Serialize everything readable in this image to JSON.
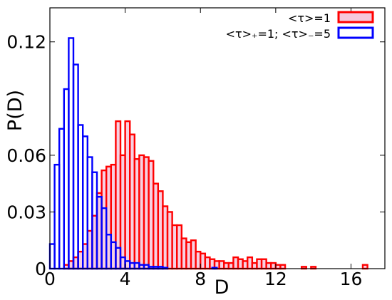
{
  "chart_data": {
    "type": "bar",
    "xlabel": "D",
    "ylabel": "P(D)",
    "xlim": [
      0,
      17.8
    ],
    "ylim": [
      0,
      0.138
    ],
    "xticks": [
      {
        "value": 0,
        "label": "0"
      },
      {
        "value": 4,
        "label": "4"
      },
      {
        "value": 8,
        "label": "8"
      },
      {
        "value": 12,
        "label": "12"
      },
      {
        "value": 16,
        "label": "16"
      }
    ],
    "yticks": [
      {
        "value": 0,
        "label": "0"
      },
      {
        "value": 0.03,
        "label": "0.03"
      },
      {
        "value": 0.06,
        "label": "0.06"
      },
      {
        "value": 0.12,
        "label": "0.12"
      }
    ],
    "grid": false,
    "legend_position": "top-right",
    "series": [
      {
        "name": "<τ>=1",
        "color": "#ff0000",
        "fill": "#f6c8dc",
        "bin_width": 0.25,
        "x": [
          0.875,
          1.125,
          1.375,
          1.625,
          1.875,
          2.125,
          2.375,
          2.625,
          2.875,
          3.125,
          3.375,
          3.625,
          3.875,
          4.125,
          4.375,
          4.625,
          4.875,
          5.125,
          5.375,
          5.625,
          5.875,
          6.125,
          6.375,
          6.625,
          6.875,
          7.125,
          7.375,
          7.625,
          7.875,
          8.125,
          8.375,
          8.625,
          8.875,
          9.125,
          9.375,
          9.625,
          9.875,
          10.125,
          10.375,
          10.625,
          10.875,
          11.125,
          11.375,
          11.625,
          11.875,
          12.125,
          12.375,
          13.5,
          14.0,
          16.75
        ],
        "values": [
          0.002,
          0.004,
          0.006,
          0.009,
          0.013,
          0.02,
          0.028,
          0.04,
          0.052,
          0.054,
          0.055,
          0.078,
          0.06,
          0.078,
          0.071,
          0.058,
          0.06,
          0.059,
          0.057,
          0.045,
          0.041,
          0.033,
          0.03,
          0.023,
          0.023,
          0.016,
          0.014,
          0.015,
          0.009,
          0.008,
          0.006,
          0.005,
          0.004,
          0.004,
          0.003,
          0.003,
          0.006,
          0.005,
          0.004,
          0.006,
          0.003,
          0.005,
          0.005,
          0.003,
          0.003,
          0.002,
          0.002,
          0.001,
          0.001,
          0.002
        ]
      },
      {
        "name": "<τ>₊=1; <τ>₋=5",
        "color": "#0000ff",
        "fill": "none",
        "bin_width": 0.25,
        "x": [
          0.125,
          0.375,
          0.625,
          0.875,
          1.125,
          1.375,
          1.625,
          1.875,
          2.125,
          2.375,
          2.625,
          2.875,
          3.125,
          3.375,
          3.625,
          3.875,
          4.125,
          4.375,
          4.625,
          4.875,
          5.125,
          5.375,
          5.625,
          5.875,
          6.125,
          8.75
        ],
        "values": [
          0.013,
          0.055,
          0.074,
          0.095,
          0.122,
          0.108,
          0.076,
          0.07,
          0.059,
          0.051,
          0.038,
          0.032,
          0.018,
          0.014,
          0.011,
          0.006,
          0.004,
          0.003,
          0.003,
          0.002,
          0.002,
          0.001,
          0.001,
          0.001,
          0.0005,
          0.0005
        ]
      }
    ]
  }
}
